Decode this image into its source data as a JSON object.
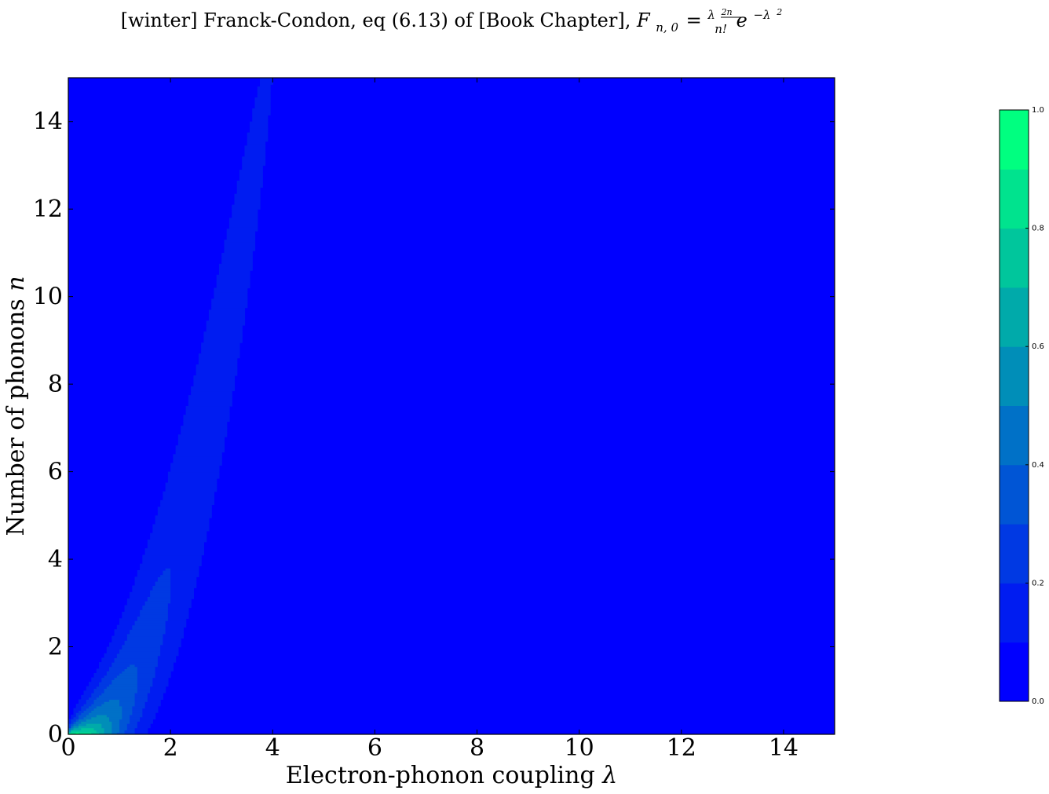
{
  "title_text": "[winter] Franck-Condon, eq (6.13) of [Book Chapter], ",
  "title_math": {
    "F": "F",
    "sub": "n, 0",
    "eq": "=",
    "frac_num_base": "λ",
    "frac_num_exp": "2n",
    "frac_den": "n!",
    "exp_base": "e",
    "exp_sup": "−λ",
    "exp_sup_sup": "2"
  },
  "chart_data": {
    "type": "heatmap",
    "subtype": "filled-contour",
    "function": "F_{n,0} = λ^(2n) / n! · e^(−λ²)",
    "title": "[winter] Franck-Condon, eq (6.13) of [Book Chapter], F_{n,0} = λ^{2n}/n! e^{-λ^2}",
    "xlabel": "Electron-phonon coupling λ",
    "ylabel": "Number of phonons n",
    "xlim": [
      0,
      15
    ],
    "ylim": [
      0,
      15
    ],
    "xticks": [
      "0",
      "2",
      "4",
      "6",
      "8",
      "10",
      "12",
      "14"
    ],
    "yticks": [
      "0",
      "2",
      "4",
      "6",
      "8",
      "10",
      "12",
      "14"
    ],
    "colormap": "winter",
    "levels": [
      0.0,
      0.1,
      0.2,
      0.3,
      0.4,
      0.5,
      0.6,
      0.7,
      0.8,
      0.9,
      1.0
    ],
    "colorbar_ticks": [
      "0.0",
      "0.2",
      "0.4",
      "0.6",
      "0.8",
      "1.0"
    ],
    "colorbar_tick_values": [
      0.0,
      0.2,
      0.4,
      0.6,
      0.8,
      1.0
    ],
    "colors": {
      "low": "#0000ff",
      "high": "#00ff80"
    },
    "grid": false
  },
  "axes": {
    "xlabel_text": "Electron-phonon coupling ",
    "xlabel_sym": "λ",
    "ylabel_text": "Number of phonons ",
    "ylabel_sym": "n"
  }
}
